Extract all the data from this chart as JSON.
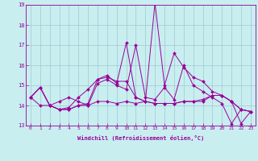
{
  "xlabel": "Windchill (Refroidissement éolien,°C)",
  "background_color": "#c8eef0",
  "grid_color": "#a0c8d0",
  "line_color": "#990099",
  "xlim": [
    -0.5,
    23.5
  ],
  "ylim": [
    13,
    19
  ],
  "xticks": [
    0,
    1,
    2,
    3,
    4,
    5,
    6,
    7,
    8,
    9,
    10,
    11,
    12,
    13,
    14,
    15,
    16,
    17,
    18,
    19,
    20,
    21,
    22,
    23
  ],
  "yticks": [
    13,
    14,
    15,
    16,
    17,
    18,
    19
  ],
  "lines": [
    [
      14.4,
      14.9,
      14.0,
      13.8,
      13.8,
      14.0,
      14.0,
      15.1,
      15.3,
      15.0,
      14.8,
      17.0,
      14.4,
      14.3,
      14.9,
      14.3,
      16.0,
      15.0,
      14.7,
      14.4,
      14.1,
      13.1,
      13.8,
      13.7
    ],
    [
      14.4,
      14.0,
      14.0,
      14.2,
      14.4,
      14.2,
      14.0,
      14.2,
      14.2,
      14.1,
      14.2,
      14.1,
      14.2,
      14.1,
      14.1,
      14.1,
      14.2,
      14.2,
      14.2,
      14.5,
      14.5,
      14.2,
      13.8,
      13.7
    ],
    [
      14.4,
      14.9,
      14.0,
      13.8,
      13.9,
      14.4,
      14.8,
      15.3,
      15.5,
      15.1,
      17.1,
      14.4,
      14.2,
      19.1,
      15.0,
      16.6,
      15.9,
      15.4,
      15.2,
      14.7,
      14.5,
      14.2,
      13.1,
      13.7
    ],
    [
      14.4,
      14.9,
      14.0,
      13.8,
      13.8,
      14.0,
      14.1,
      15.3,
      15.4,
      15.2,
      15.2,
      14.4,
      14.2,
      14.1,
      14.1,
      14.1,
      14.2,
      14.2,
      14.3,
      14.5,
      14.5,
      14.2,
      13.8,
      13.7
    ]
  ]
}
